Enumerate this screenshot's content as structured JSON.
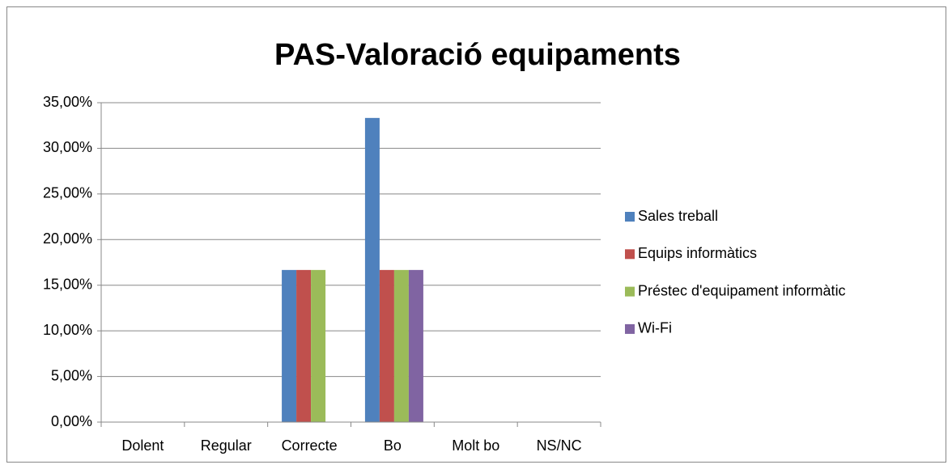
{
  "chart_data": {
    "type": "bar",
    "title": "PAS-Valoració equipaments",
    "categories": [
      "Dolent",
      "Regular",
      "Correcte",
      "Bo",
      "Molt bo",
      "NS/NC"
    ],
    "series": [
      {
        "name": "Sales treball",
        "color": "#4f81bd",
        "values": [
          0,
          0,
          16.67,
          33.33,
          0,
          0
        ]
      },
      {
        "name": "Equips informàtics",
        "color": "#c0504d",
        "values": [
          0,
          0,
          16.67,
          16.67,
          0,
          0
        ]
      },
      {
        "name": "Préstec d'equipament informàtic",
        "color": "#9bbb59",
        "values": [
          0,
          0,
          16.67,
          16.67,
          0,
          0
        ]
      },
      {
        "name": "Wi-Fi",
        "color": "#8064a2",
        "values": [
          0,
          0,
          0,
          16.67,
          0,
          0
        ]
      }
    ],
    "ylim": [
      0,
      35
    ],
    "yticks": [
      {
        "value": 0,
        "label": "0,00%"
      },
      {
        "value": 5,
        "label": "5,00%"
      },
      {
        "value": 10,
        "label": "10,00%"
      },
      {
        "value": 15,
        "label": "15,00%"
      },
      {
        "value": 20,
        "label": "20,00%"
      },
      {
        "value": 25,
        "label": "25,00%"
      },
      {
        "value": 30,
        "label": "30,00%"
      },
      {
        "value": 35,
        "label": "35,00%"
      }
    ],
    "grid": true,
    "legend": "right"
  }
}
